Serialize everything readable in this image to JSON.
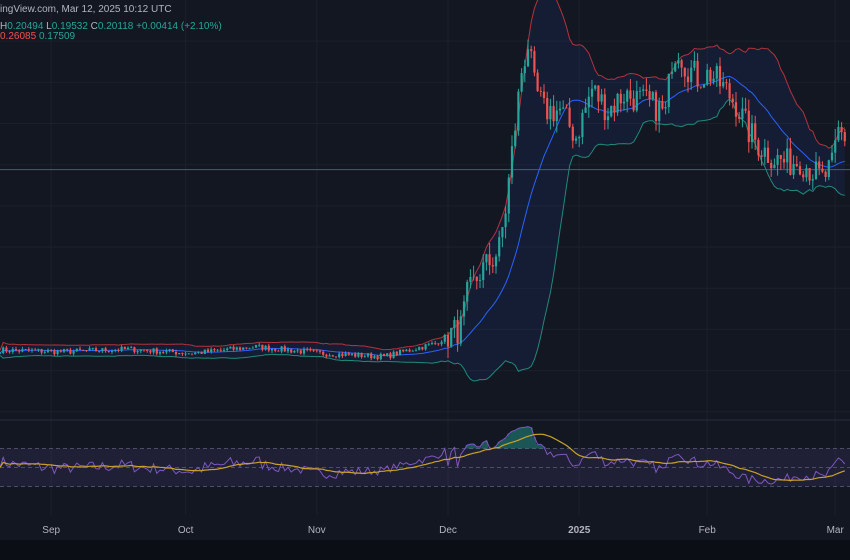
{
  "header": {
    "source": "ingView.com, Mar 12, 2025 10:12 UTC",
    "ohlc": [
      {
        "label": "H",
        "value": "0.20494"
      },
      {
        "label": "L",
        "value": "0.19532"
      },
      {
        "label": "C",
        "value": "0.20118"
      },
      {
        "label": "",
        "value": "+0.00414 (+2.10%)"
      }
    ],
    "bb_upper": "0.26085",
    "bb_lower": "0.17509"
  },
  "colors": {
    "background": "#131722",
    "up": "#26a69a",
    "down": "#ef5350",
    "bb_upper": "#b2333d",
    "bb_basis": "#2962ff",
    "bb_lower": "#1f8a7a",
    "rsi": "#7e57c2",
    "rsi_ma": "#c9a227"
  },
  "chart_data": {
    "type": "candlestick",
    "x_tick_labels": [
      "Sep",
      "Oct",
      "Nov",
      "Dec",
      "2025",
      "Feb",
      "Mar"
    ],
    "horizontal_level": 0.202,
    "ylim": [
      0.05,
      0.305
    ],
    "rsi_panel": {
      "ylim": [
        0,
        100
      ],
      "bands": [
        70,
        50,
        30
      ]
    },
    "candle_keypoints": [
      [
        0,
        0.0925
      ],
      [
        20,
        0.0915
      ],
      [
        40,
        0.093
      ],
      [
        60,
        0.0905
      ],
      [
        80,
        0.0945
      ],
      [
        100,
        0.0905
      ],
      [
        120,
        0.0885
      ],
      [
        136,
        0.0965
      ],
      [
        144,
        0.106
      ],
      [
        146,
        0.125
      ],
      [
        150,
        0.1395
      ],
      [
        154,
        0.148
      ],
      [
        156,
        0.154
      ],
      [
        158,
        0.178
      ],
      [
        160,
        0.212
      ],
      [
        163,
        0.262
      ],
      [
        165,
        0.2785
      ],
      [
        167,
        0.252
      ],
      [
        170,
        0.238
      ],
      [
        175,
        0.238
      ],
      [
        180,
        0.222
      ],
      [
        185,
        0.251
      ],
      [
        190,
        0.238
      ],
      [
        195,
        0.248
      ],
      [
        200,
        0.244
      ],
      [
        205,
        0.24
      ],
      [
        208,
        0.236
      ],
      [
        210,
        0.27
      ],
      [
        212,
        0.276
      ],
      [
        214,
        0.266
      ],
      [
        218,
        0.258
      ],
      [
        222,
        0.26
      ],
      [
        226,
        0.252
      ],
      [
        230,
        0.242
      ],
      [
        234,
        0.225
      ],
      [
        238,
        0.215
      ],
      [
        242,
        0.209
      ],
      [
        246,
        0.206
      ],
      [
        250,
        0.208
      ],
      [
        254,
        0.201
      ],
      [
        257,
        0.196
      ],
      [
        260,
        0.204
      ],
      [
        262,
        0.225
      ],
      [
        264,
        0.222
      ]
    ],
    "candle_count": 265
  }
}
